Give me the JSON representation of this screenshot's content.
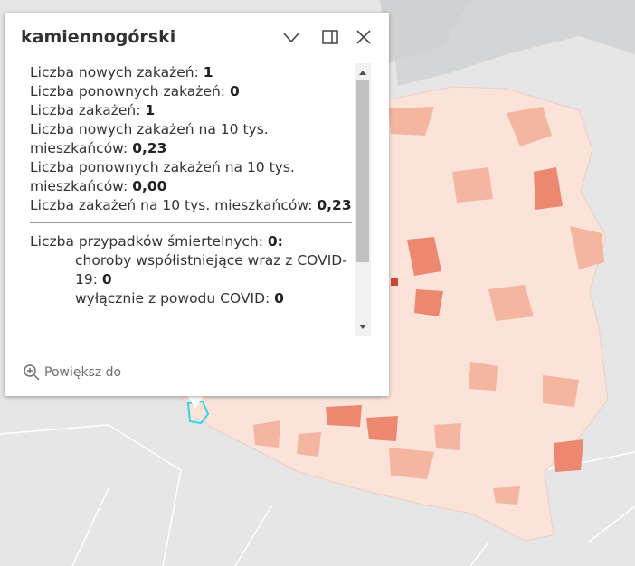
{
  "popup": {
    "title": "kamiennogórski",
    "fields": [
      {
        "label": "Liczba nowych zakażeń:",
        "value": "1"
      },
      {
        "label": "Liczba ponownych zakażeń:",
        "value": "0"
      },
      {
        "label": "Liczba zakażeń:",
        "value": "1"
      },
      {
        "label": "Liczba nowych zakażeń na 10 tys. mieszkańców:",
        "value": "0,23"
      },
      {
        "label": "Liczba ponownych zakażeń na 10 tys. mieszkańców:",
        "value": "0,00"
      },
      {
        "label": "Liczba zakażeń na 10 tys. mieszkańców:",
        "value": "0,23"
      }
    ],
    "deaths": {
      "label": "Liczba przypadków śmiertelnych:",
      "value": "0:",
      "items": [
        {
          "label": "choroby współistniejące wraz z COVID-19:",
          "value": "0"
        },
        {
          "label": "wyłącznie z powodu COVID:",
          "value": "0"
        }
      ]
    },
    "action": "Powiększ do"
  }
}
